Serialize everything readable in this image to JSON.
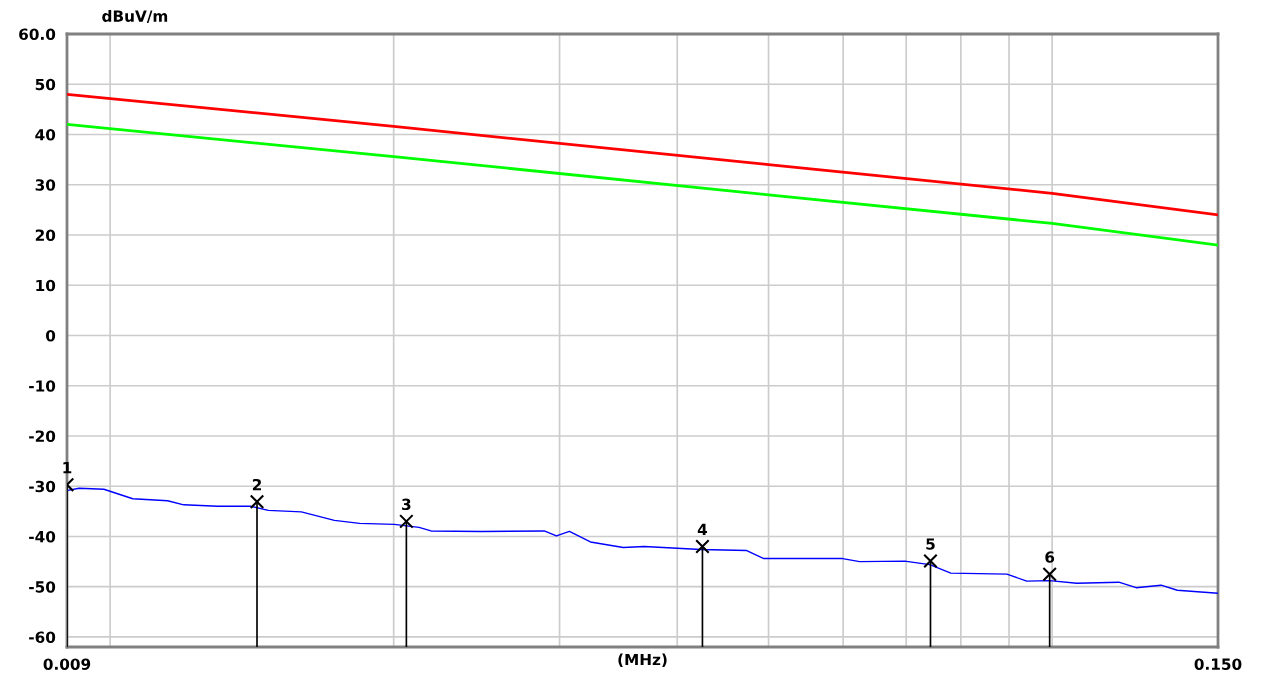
{
  "chart_data": {
    "type": "line",
    "xlabel": "(MHz)",
    "ylabel": "dBuV/m",
    "log": "x",
    "grid": true,
    "marker": "none",
    "line_style": "solid",
    "xlim": [
      0.009,
      0.15
    ],
    "xticks": [
      {
        "value": 0.009,
        "label": "0.009"
      },
      {
        "value": 0.01,
        "label": null
      },
      {
        "value": 0.02,
        "label": null
      },
      {
        "value": 0.03,
        "label": null
      },
      {
        "value": 0.04,
        "label": null
      },
      {
        "value": 0.05,
        "label": null
      },
      {
        "value": 0.06,
        "label": null
      },
      {
        "value": 0.07,
        "label": null
      },
      {
        "value": 0.08,
        "label": null
      },
      {
        "value": 0.09,
        "label": null
      },
      {
        "value": 0.1,
        "label": null
      },
      {
        "value": 0.15,
        "label": "0.150"
      }
    ],
    "ylim": [
      -62,
      60
    ],
    "yticks": [
      -60,
      -50,
      -40,
      -30,
      -20,
      -10,
      0,
      10,
      20,
      30,
      40,
      50,
      {
        "value": 60,
        "label": "60.0"
      }
    ],
    "series": [
      {
        "color": "#ff0000",
        "x": [
          0.009,
          0.02,
          0.05,
          0.1,
          0.15
        ],
        "values": [
          48,
          41.6,
          34.0,
          28.3,
          24
        ]
      },
      {
        "color": "#00ff00",
        "x": [
          0.009,
          0.02,
          0.05,
          0.1,
          0.15
        ],
        "values": [
          42,
          35.6,
          28.0,
          22.3,
          18
        ]
      },
      {
        "color": "#0000ff",
        "x": [
          0.00904,
          0.00927,
          0.00985,
          0.01057,
          0.01151,
          0.01197,
          0.01301,
          0.01411,
          0.01472,
          0.01596,
          0.0173,
          0.0184,
          0.02003,
          0.02128,
          0.02191,
          0.02477,
          0.0289,
          0.02977,
          0.03073,
          0.03235,
          0.03506,
          0.0369,
          0.04237,
          0.04741,
          0.04942,
          0.05531,
          0.05993,
          0.06247,
          0.06975,
          0.07415,
          0.07806,
          0.08953,
          0.09399,
          0.09943,
          0.1062,
          0.1177,
          0.1228,
          0.1305,
          0.1358,
          0.1497
        ],
        "values": [
          -30.8,
          -30.4,
          -30.6,
          -32.5,
          -32.9,
          -33.7,
          -34.0,
          -34.0,
          -34.8,
          -35.1,
          -36.8,
          -37.4,
          -37.6,
          -38.2,
          -38.9,
          -39.0,
          -38.9,
          -39.9,
          -39.0,
          -41.1,
          -42.2,
          -42.0,
          -42.6,
          -42.8,
          -44.4,
          -44.4,
          -44.4,
          -45.0,
          -44.9,
          -45.6,
          -47.3,
          -47.5,
          -48.9,
          -48.8,
          -49.3,
          -49.1,
          -50.2,
          -49.7,
          -50.7,
          -51.3
        ]
      },
      {
        "type": "lollipop",
        "color": "#000000",
        "marker": "cross",
        "x": [
          0.009,
          0.01432,
          0.02063,
          0.04254,
          0.07428,
          0.0994
        ],
        "values": [
          -29.7,
          -33.1,
          -37.0,
          -42.0,
          -44.9,
          -47.5
        ]
      }
    ],
    "annotations": [
      {
        "text": "1",
        "x": 0.009,
        "y": -29.7
      },
      {
        "text": "2",
        "x": 0.01432,
        "y": -33.1
      },
      {
        "text": "3",
        "x": 0.02063,
        "y": -37.0
      },
      {
        "text": "4",
        "x": 0.04254,
        "y": -42.0
      },
      {
        "text": "5",
        "x": 0.07428,
        "y": -44.9
      },
      {
        "text": "6",
        "x": 0.0994,
        "y": -47.5
      }
    ]
  }
}
